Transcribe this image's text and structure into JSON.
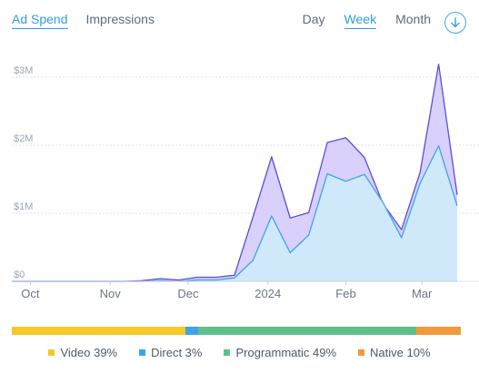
{
  "metric_tabs": [
    {
      "label": "Ad Spend",
      "active": true
    },
    {
      "label": "Impressions",
      "active": false
    }
  ],
  "period_tabs": [
    {
      "label": "Day",
      "active": false
    },
    {
      "label": "Week",
      "active": true
    },
    {
      "label": "Month",
      "active": false
    }
  ],
  "download_icon": "download-circle-icon",
  "colors": {
    "accent": "#2f9de4",
    "total_line": "#5a4fd9",
    "total_fill": "#d9d0fb",
    "inner_line": "#3ea4ea",
    "inner_fill": "#cfe9fb",
    "gridline": "#dde3ea"
  },
  "chart_data": {
    "type": "area",
    "title": "",
    "xlabel": "",
    "ylabel": "",
    "ylim": [
      0,
      3200000
    ],
    "grid": true,
    "y_ticks": [
      {
        "value": 0,
        "label": "$0"
      },
      {
        "value": 1000000,
        "label": "$1M"
      },
      {
        "value": 2000000,
        "label": "$2M"
      },
      {
        "value": 3000000,
        "label": "$3M"
      }
    ],
    "x_ticks": [
      {
        "index": 1,
        "label": "Oct"
      },
      {
        "index": 5.3,
        "label": "Nov"
      },
      {
        "index": 9.5,
        "label": "Dec"
      },
      {
        "index": 13.8,
        "label": "2024"
      },
      {
        "index": 18,
        "label": "Feb"
      },
      {
        "index": 22.1,
        "label": "Mar"
      }
    ],
    "series": [
      {
        "values": [
          0,
          0,
          0,
          0,
          0,
          0,
          0,
          10000,
          40000,
          20000,
          60000,
          60000,
          90000,
          950000,
          1830000,
          930000,
          1010000,
          2040000,
          2110000,
          1820000,
          1140000,
          760000,
          1600000,
          3190000,
          1270000
        ],
        "color": "#5a4fd9",
        "fill": "#d9d0fb"
      },
      {
        "values": [
          0,
          0,
          0,
          0,
          0,
          0,
          0,
          0,
          10000,
          0,
          20000,
          20000,
          50000,
          310000,
          960000,
          420000,
          680000,
          1580000,
          1470000,
          1570000,
          1160000,
          640000,
          1440000,
          1990000,
          1110000
        ],
        "color": "#3ea4ea",
        "fill": "#cfe9fb"
      }
    ],
    "share": [
      {
        "name": "Video",
        "pct": 39,
        "label": "Video 39%",
        "color": "#f5c928"
      },
      {
        "name": "Direct",
        "pct": 3,
        "label": "Direct 3%",
        "color": "#3ea4ea"
      },
      {
        "name": "Programmatic",
        "pct": 49,
        "label": "Programmatic 49%",
        "color": "#5ec089"
      },
      {
        "name": "Native",
        "pct": 10,
        "label": "Native 10%",
        "color": "#f19a3a"
      }
    ]
  }
}
